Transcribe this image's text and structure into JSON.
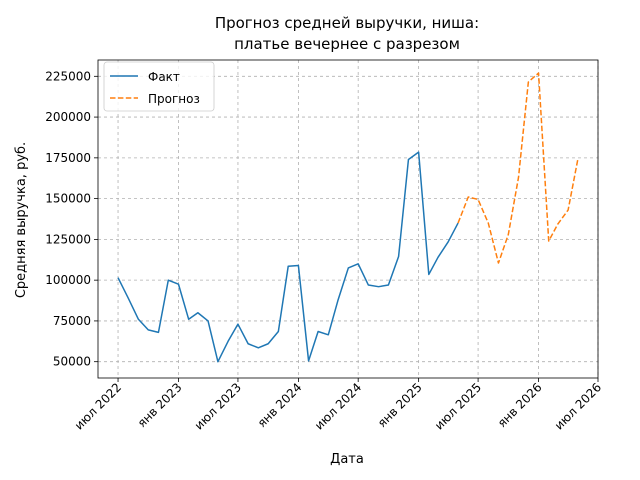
{
  "chart_data": {
    "type": "line",
    "title_lines": [
      "Прогноз средней выручки, ниша:",
      "платье вечернее с разрезом"
    ],
    "xlabel": "Дата",
    "ylabel": "Средняя выручка, руб.",
    "xlim": [
      "2022-05-01",
      "2026-07-01"
    ],
    "ylim": [
      40000,
      235000
    ],
    "y_ticks": [
      50000,
      75000,
      100000,
      125000,
      150000,
      175000,
      200000,
      225000
    ],
    "x_ticks": [
      {
        "date": "2022-07-01",
        "label": "июл 2022"
      },
      {
        "date": "2023-01-01",
        "label": "янв 2023"
      },
      {
        "date": "2023-07-01",
        "label": "июл 2023"
      },
      {
        "date": "2024-01-01",
        "label": "янв 2024"
      },
      {
        "date": "2024-07-01",
        "label": "июл 2024"
      },
      {
        "date": "2025-01-01",
        "label": "янв 2025"
      },
      {
        "date": "2025-07-01",
        "label": "июл 2025"
      },
      {
        "date": "2026-01-01",
        "label": "янв 2026"
      },
      {
        "date": "2026-07-01",
        "label": "июл 2026"
      }
    ],
    "grid": true,
    "legend_position": "top-left",
    "series": [
      {
        "name": "Факт",
        "color": "#1f77b4",
        "style": "solid",
        "points": [
          {
            "x": "2022-07-01",
            "y": 101500
          },
          {
            "x": "2022-08-01",
            "y": 89000
          },
          {
            "x": "2022-09-01",
            "y": 76000
          },
          {
            "x": "2022-10-01",
            "y": 69500
          },
          {
            "x": "2022-11-01",
            "y": 68000
          },
          {
            "x": "2022-12-01",
            "y": 100000
          },
          {
            "x": "2023-01-01",
            "y": 97500
          },
          {
            "x": "2023-02-01",
            "y": 76000
          },
          {
            "x": "2023-03-01",
            "y": 80000
          },
          {
            "x": "2023-04-01",
            "y": 75000
          },
          {
            "x": "2023-05-01",
            "y": 50000
          },
          {
            "x": "2023-06-01",
            "y": 62500
          },
          {
            "x": "2023-07-01",
            "y": 73000
          },
          {
            "x": "2023-08-01",
            "y": 61000
          },
          {
            "x": "2023-09-01",
            "y": 58500
          },
          {
            "x": "2023-10-01",
            "y": 61000
          },
          {
            "x": "2023-11-01",
            "y": 68500
          },
          {
            "x": "2023-12-01",
            "y": 108500
          },
          {
            "x": "2024-01-01",
            "y": 109000
          },
          {
            "x": "2024-02-01",
            "y": 50500
          },
          {
            "x": "2024-03-01",
            "y": 68500
          },
          {
            "x": "2024-04-01",
            "y": 66500
          },
          {
            "x": "2024-05-01",
            "y": 88000
          },
          {
            "x": "2024-06-01",
            "y": 107500
          },
          {
            "x": "2024-07-01",
            "y": 110000
          },
          {
            "x": "2024-08-01",
            "y": 97000
          },
          {
            "x": "2024-09-01",
            "y": 96000
          },
          {
            "x": "2024-10-01",
            "y": 97000
          },
          {
            "x": "2024-11-01",
            "y": 114500
          },
          {
            "x": "2024-12-01",
            "y": 174000
          },
          {
            "x": "2025-01-01",
            "y": 178500
          },
          {
            "x": "2025-02-01",
            "y": 103500
          },
          {
            "x": "2025-03-01",
            "y": 114000
          },
          {
            "x": "2025-04-01",
            "y": 123500
          },
          {
            "x": "2025-05-01",
            "y": 135000
          }
        ]
      },
      {
        "name": "Прогноз",
        "color": "#ff7f0e",
        "style": "dashed",
        "points": [
          {
            "x": "2025-05-01",
            "y": 135000
          },
          {
            "x": "2025-06-01",
            "y": 151000
          },
          {
            "x": "2025-07-01",
            "y": 149500
          },
          {
            "x": "2025-08-01",
            "y": 135000
          },
          {
            "x": "2025-09-01",
            "y": 110500
          },
          {
            "x": "2025-10-01",
            "y": 128000
          },
          {
            "x": "2025-11-01",
            "y": 163000
          },
          {
            "x": "2025-12-01",
            "y": 221500
          },
          {
            "x": "2026-01-01",
            "y": 227000
          },
          {
            "x": "2026-02-01",
            "y": 124000
          },
          {
            "x": "2026-03-01",
            "y": 134500
          },
          {
            "x": "2026-04-01",
            "y": 143000
          },
          {
            "x": "2026-05-01",
            "y": 174500
          }
        ]
      }
    ]
  }
}
